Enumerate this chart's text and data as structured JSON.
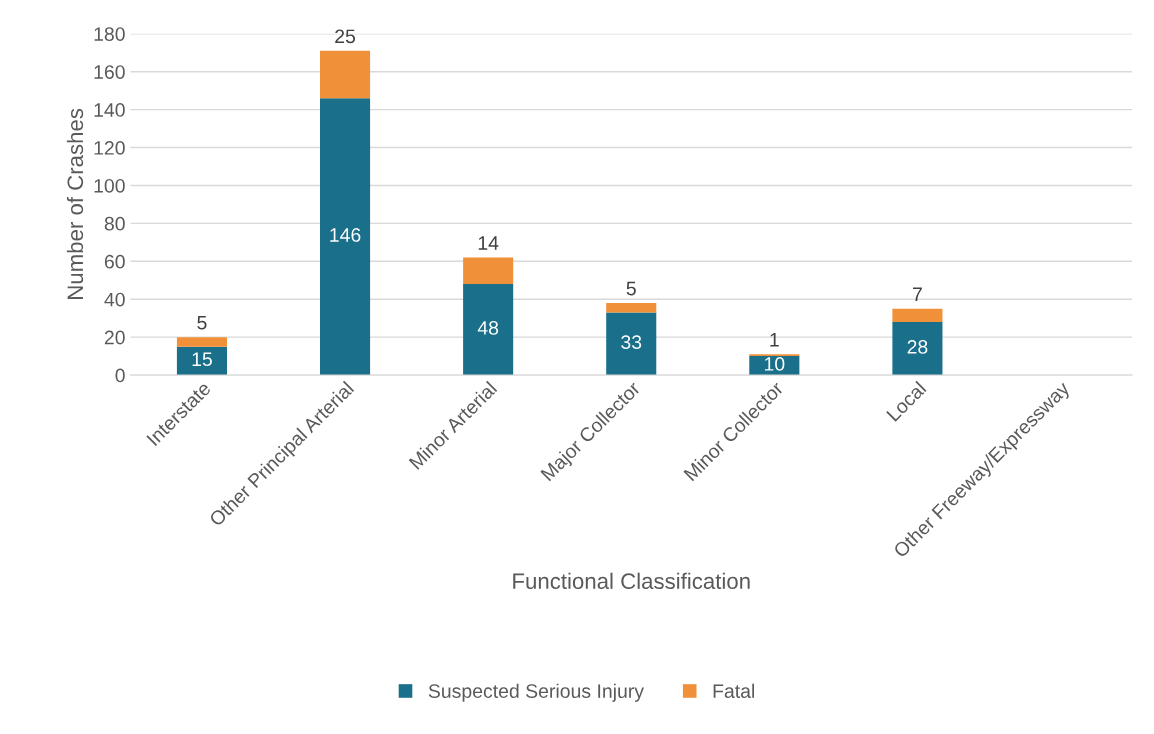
{
  "chart_data": {
    "type": "bar",
    "stacked": true,
    "xlabel": "Functional Classification",
    "ylabel": "Number of Crashes",
    "categories": [
      "Interstate",
      "Other Principal Arterial",
      "Minor Arterial",
      "Major Collector",
      "Minor Collector",
      "Local",
      "Other Freeway/Expressway"
    ],
    "series": [
      {
        "name": "Suspected Serious Injury",
        "color": "#1a6f8a",
        "values": [
          15,
          146,
          48,
          33,
          10,
          28,
          null
        ]
      },
      {
        "name": "Fatal",
        "color": "#f0913a",
        "values": [
          5,
          25,
          14,
          5,
          1,
          7,
          null
        ]
      }
    ],
    "ylim": [
      0,
      180
    ],
    "yticks": [
      0,
      20,
      40,
      60,
      80,
      100,
      120,
      140,
      160,
      180
    ],
    "grid": "y",
    "legend": "bottom",
    "data_labels": true
  }
}
